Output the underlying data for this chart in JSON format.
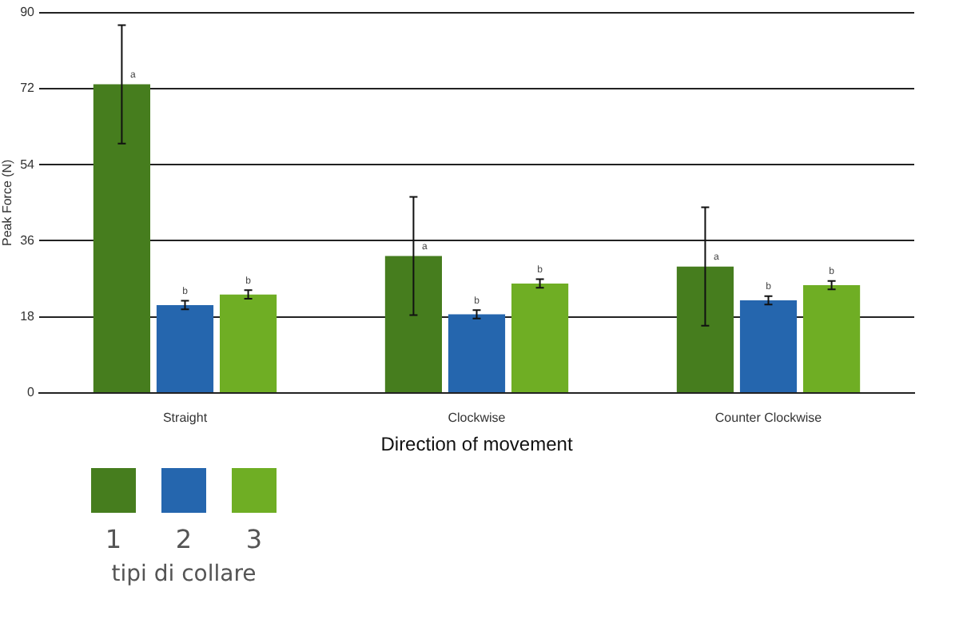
{
  "chart_data": {
    "type": "bar",
    "xlabel": "Direction of movement",
    "ylabel": "Peak Force (N)",
    "legend_title": "tipi di collare",
    "categories": [
      "Straight",
      "Clockwise",
      "Counter Clockwise"
    ],
    "series": [
      {
        "name": "1",
        "color": "#467d1e",
        "values": [
          73,
          32.4,
          29.9
        ],
        "errors": [
          14,
          14,
          14
        ],
        "value_labels": [
          "a",
          "a",
          "a"
        ]
      },
      {
        "name": "2",
        "color": "#2566ae",
        "values": [
          20.8,
          18.6,
          21.9
        ],
        "errors": [
          1,
          1,
          1
        ],
        "value_labels": [
          "b",
          "b",
          "b"
        ]
      },
      {
        "name": "3",
        "color": "#6fae24",
        "values": [
          23.3,
          25.9,
          25.5
        ],
        "errors": [
          1,
          1,
          1
        ],
        "value_labels": [
          "b",
          "b",
          "b"
        ]
      }
    ],
    "ylim": [
      0,
      90
    ],
    "yticks": [
      0,
      18,
      36,
      54,
      72,
      90
    ],
    "grid": "y",
    "legend": "bottom left"
  }
}
